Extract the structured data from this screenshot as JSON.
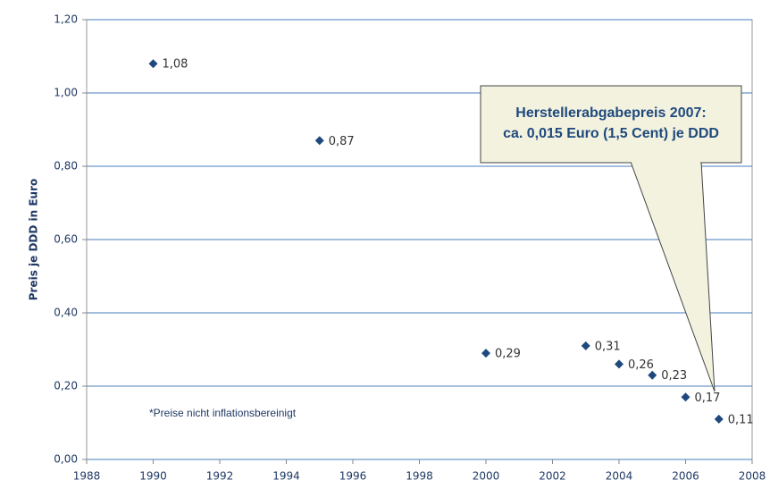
{
  "chart_data": {
    "type": "scatter",
    "y_label": "Preis je DDD in Euro",
    "x": [
      1990,
      1995,
      2000,
      2003,
      2004,
      2005,
      2006,
      2007
    ],
    "values": [
      1.08,
      0.87,
      0.29,
      0.31,
      0.26,
      0.23,
      0.17,
      0.11
    ],
    "value_labels": [
      "1,08",
      "0,87",
      "0,29",
      "0,31",
      "0,26",
      "0,23",
      "0,17",
      "0,11"
    ],
    "color": "#1f497d",
    "xlim": [
      1988,
      2008
    ],
    "xticks": [
      1988,
      1990,
      1992,
      1994,
      1996,
      1998,
      2000,
      2002,
      2004,
      2006,
      2008
    ],
    "ylim": [
      0,
      1.2
    ],
    "yticks": [
      {
        "value": 0,
        "label": "0,00"
      },
      {
        "value": 0.2,
        "label": "0,20"
      },
      {
        "value": 0.4,
        "label": "0,40"
      },
      {
        "value": 0.6,
        "label": "0,60"
      },
      {
        "value": 0.8,
        "label": "0,80"
      },
      {
        "value": 1.0,
        "label": "1,00"
      },
      {
        "value": 1.2,
        "label": "1,20"
      }
    ],
    "grid": true,
    "callout": [
      "Herstellerabgabepreis 2007:",
      "ca.  0,015 Euro (1,5 Cent) je DDD"
    ],
    "note": "*Preise nicht inflationsbereinigt"
  }
}
